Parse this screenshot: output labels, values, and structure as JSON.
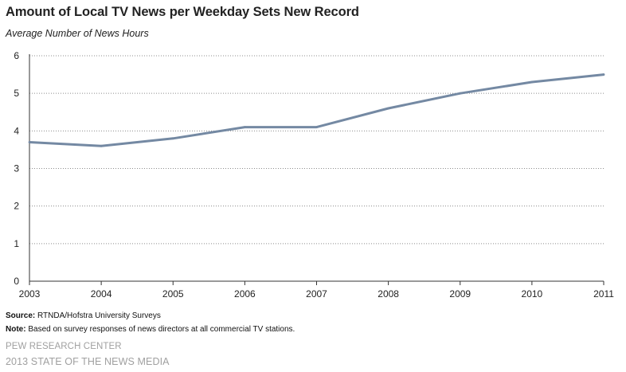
{
  "chart_data": {
    "type": "line",
    "title": "Amount of Local TV News per Weekday Sets New Record",
    "ylabel": "Average Number of News Hours",
    "xlabel": "",
    "x": [
      "2003",
      "2004",
      "2005",
      "2006",
      "2007",
      "2008",
      "2009",
      "2010",
      "2011"
    ],
    "series": [
      {
        "name": "Average Number of News Hours",
        "values": [
          3.7,
          3.6,
          3.8,
          4.1,
          4.1,
          4.6,
          5.0,
          5.3,
          5.5
        ]
      }
    ],
    "ylim": [
      0,
      6
    ],
    "yticks": [
      "0",
      "1",
      "2",
      "3",
      "4",
      "5",
      "6"
    ],
    "grid": true,
    "legend": "none"
  },
  "footer": {
    "source_label": "Source:",
    "source_text": "RTNDA/Hofstra University Surveys",
    "note_label": "Note:",
    "note_text": "Based on survey responses of news directors at all commercial TV stations.",
    "brand_line1": "PEW RESEARCH CENTER",
    "brand_line2": "2013 STATE OF THE NEWS MEDIA"
  },
  "colors": {
    "line": "#7489a3",
    "grid": "#8c8c8c",
    "axis": "#333333",
    "brand": "#a0a0a0"
  }
}
